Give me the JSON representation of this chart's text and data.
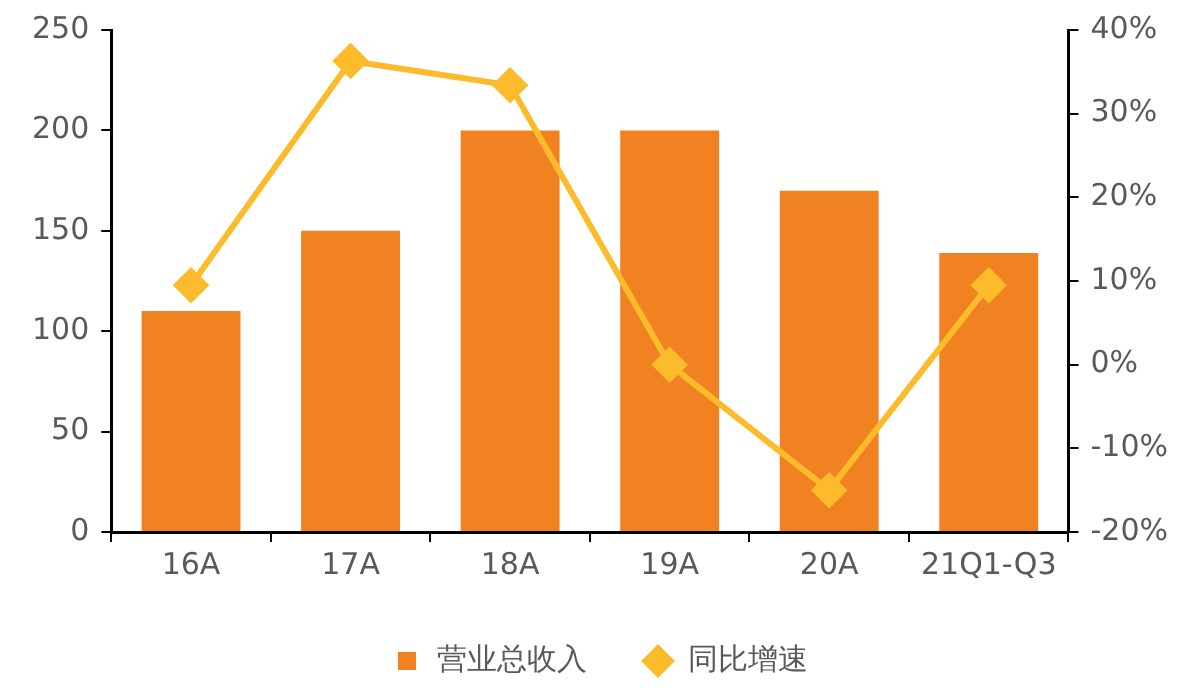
{
  "chart_data": {
    "type": "bar",
    "categories": [
      "16A",
      "17A",
      "18A",
      "19A",
      "20A",
      "21Q1-Q3"
    ],
    "series": [
      {
        "name": "营业总收入",
        "color": "#f08222",
        "values": [
          110,
          150,
          200,
          200,
          170,
          139
        ]
      },
      {
        "name": "同比增速",
        "type": "line",
        "axis": "y2",
        "color": "#fbbb2b",
        "values": [
          9.5,
          36.3,
          33.4,
          0,
          -15,
          9.5
        ]
      }
    ],
    "ylim": [
      0,
      250
    ],
    "yticks": [
      0,
      50,
      100,
      150,
      200,
      250
    ],
    "y2lim": [
      -20,
      40
    ],
    "y2ticks": [
      {
        "value": -20,
        "label": "-20%"
      },
      {
        "value": -10,
        "label": "-10%"
      },
      {
        "value": 0,
        "label": "0%"
      },
      {
        "value": 10,
        "label": "10%"
      },
      {
        "value": 20,
        "label": "20%"
      },
      {
        "value": 30,
        "label": "30%"
      },
      {
        "value": 40,
        "label": "40%"
      }
    ],
    "grid": false,
    "legend": "bottom",
    "marker": "diamond",
    "line_style": "solid"
  }
}
